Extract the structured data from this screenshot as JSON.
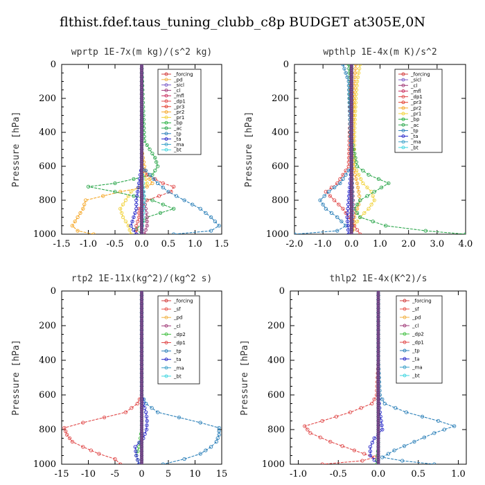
{
  "figure_title": "flthist.fdef.taus_tuning_clubb_c8p  BUDGET at305E,0N",
  "colors": {
    "_forcing": "#d23c3c",
    "_sf": "#e8534a",
    "_pd": "#f0b040",
    "_sicl": "#7b5cc8",
    "_cl": "#a03a78",
    "_mfl": "#c8285a",
    "_dp1": "#e04848",
    "_dp2": "#3fbf3f",
    "_pr3": "#e23a2a",
    "_pr2": "#f5a623",
    "_pr1": "#f1d23a",
    "_bp": "#1fae3a",
    "_ac": "#2aa64a",
    "_tp": "#2a7fb8",
    "_ta": "#2323c8",
    "_ma": "#3aa0c8",
    "_bt": "#3ed6e0"
  },
  "chart_data": [
    {
      "type": "line",
      "title": "wprtp  1E-7x(m kg)/(s^2 kg)",
      "ylabel": "Pressure [hPa]",
      "xlabel": "",
      "xlim": [
        -1.5,
        1.5
      ],
      "ylim": [
        1000,
        0
      ],
      "y_inverted": true,
      "xticks": [
        "-1.5",
        "-1.0",
        "-0.5",
        "0.0",
        "0.5",
        "1.0",
        "1.5"
      ],
      "yticks": [
        "0",
        "200",
        "400",
        "600",
        "800",
        "1000"
      ],
      "legend_position": "top-right",
      "legend": [
        "_forcing",
        "_pd",
        "_sicl",
        "_cl",
        "_mfl",
        "_dp1",
        "_pr3",
        "_pr2",
        "_pr1",
        "_bp",
        "_ac",
        "_tp",
        "_ta",
        "_ma",
        "_bt"
      ],
      "series": [
        {
          "name": "_forcing",
          "p": [
            0,
            200,
            400,
            600,
            800,
            1000
          ],
          "x": [
            0,
            0,
            0,
            0,
            0,
            0
          ]
        },
        {
          "name": "_pr2",
          "p": [
            0,
            500,
            600,
            650,
            700,
            720,
            750,
            800,
            850,
            900,
            950,
            980,
            1000
          ],
          "x": [
            0,
            0,
            0.05,
            0.1,
            0.2,
            0.1,
            -0.4,
            -1.05,
            -1.1,
            -1.2,
            -1.3,
            -1.2,
            -0.9
          ]
        },
        {
          "name": "_pr1",
          "p": [
            0,
            600,
            700,
            750,
            800,
            850,
            900,
            950,
            1000
          ],
          "x": [
            0,
            0,
            0.1,
            -0.2,
            -0.3,
            -0.4,
            -0.35,
            -0.25,
            -0.2
          ]
        },
        {
          "name": "_ac",
          "p": [
            0,
            450,
            500,
            550,
            600,
            650,
            700,
            720,
            750,
            800,
            850,
            900,
            940,
            970,
            1000
          ],
          "x": [
            0,
            0.05,
            0.15,
            0.25,
            0.3,
            0.2,
            -0.5,
            -1.0,
            -0.5,
            0.2,
            0.6,
            0.1,
            0.0,
            -0.1,
            0.0
          ]
        },
        {
          "name": "_dp1",
          "p": [
            0,
            600,
            650,
            700,
            720,
            750,
            800,
            850,
            900,
            950,
            1000
          ],
          "x": [
            0,
            0,
            0.1,
            0.4,
            0.6,
            0.55,
            0.1,
            -0.05,
            -0.05,
            -0.1,
            -0.1
          ]
        },
        {
          "name": "_tp",
          "p": [
            0,
            600,
            700,
            750,
            800,
            850,
            900,
            950,
            980,
            1000
          ],
          "x": [
            0,
            0,
            0.3,
            0.5,
            0.8,
            1.1,
            1.3,
            1.45,
            1.3,
            0.6
          ]
        },
        {
          "name": "_ta",
          "p": [
            0,
            600,
            700,
            800,
            850,
            900,
            950,
            1000
          ],
          "x": [
            0,
            0,
            -0.05,
            -0.1,
            -0.1,
            -0.15,
            -0.2,
            -0.1
          ]
        },
        {
          "name": "_cl",
          "p": [
            0,
            600,
            700,
            800,
            900,
            950,
            1000
          ],
          "x": [
            0,
            0,
            0,
            0.05,
            0.1,
            0.1,
            0.05
          ]
        },
        {
          "name": "_bt",
          "p": [
            0,
            600,
            800,
            1000
          ],
          "x": [
            0,
            0,
            0.05,
            0
          ]
        }
      ]
    },
    {
      "type": "line",
      "title": "wpthlp  1E-4x(m K)/s^2",
      "ylabel": "Pressure [hPa]",
      "xlabel": "",
      "xlim": [
        -2.0,
        4.0
      ],
      "ylim": [
        1000,
        0
      ],
      "y_inverted": true,
      "xticks": [
        "-2.0",
        "-1.0",
        "0.0",
        "1.0",
        "2.0",
        "3.0",
        "4.0"
      ],
      "yticks": [
        "0",
        "200",
        "400",
        "600",
        "800",
        "1000"
      ],
      "legend_position": "top-right",
      "legend": [
        "_forcing",
        "_sicl",
        "_cl",
        "_mfl",
        "_dp1",
        "_pr3",
        "_pr2",
        "_pr1",
        "_bp",
        "_ac",
        "_tp",
        "_ta",
        "_ma",
        "_bt"
      ],
      "series": [
        {
          "name": "_forcing",
          "p": [
            0,
            200,
            400,
            600,
            800,
            1000
          ],
          "x": [
            0,
            0,
            0,
            0,
            0,
            0
          ]
        },
        {
          "name": "_pr1",
          "p": [
            0,
            50,
            100,
            200,
            400,
            600,
            700,
            750,
            800,
            850,
            900,
            950,
            1000
          ],
          "x": [
            0.3,
            0.25,
            0.2,
            0.15,
            0.1,
            0.1,
            0.4,
            0.7,
            0.8,
            0.6,
            0.3,
            0.1,
            0.0
          ]
        },
        {
          "name": "_pr2",
          "p": [
            0,
            100,
            300,
            600,
            700,
            800,
            900,
            1000
          ],
          "x": [
            0.15,
            0.1,
            0.05,
            0.05,
            0.2,
            0.3,
            0.1,
            0
          ]
        },
        {
          "name": "_ac",
          "p": [
            0,
            100,
            400,
            600,
            650,
            700,
            750,
            800,
            850,
            900,
            950,
            980,
            1000
          ],
          "x": [
            -0.1,
            -0.05,
            -0.05,
            0.2,
            0.6,
            1.3,
            0.8,
            0.3,
            0.1,
            0.3,
            1.2,
            2.6,
            4.0
          ]
        },
        {
          "name": "_dp1",
          "p": [
            0,
            600,
            700,
            750,
            800,
            850,
            900,
            950,
            1000
          ],
          "x": [
            0,
            -0.1,
            -0.5,
            -0.9,
            -0.6,
            -0.3,
            -0.1,
            0.1,
            0.3
          ]
        },
        {
          "name": "_tp",
          "p": [
            0,
            100,
            600,
            700,
            750,
            800,
            850,
            900,
            950,
            980,
            1000
          ],
          "x": [
            -0.3,
            -0.1,
            0,
            -0.4,
            -0.8,
            -1.1,
            -0.9,
            -0.5,
            -0.2,
            -0.5,
            -2.0
          ]
        },
        {
          "name": "_ta",
          "p": [
            0,
            600,
            800,
            900,
            1000
          ],
          "x": [
            0,
            0,
            -0.1,
            -0.15,
            -0.1
          ]
        },
        {
          "name": "_cl",
          "p": [
            0,
            600,
            800,
            900,
            1000
          ],
          "x": [
            0,
            0,
            0.05,
            0.05,
            0
          ]
        },
        {
          "name": "_bt",
          "p": [
            0,
            600,
            800,
            1000
          ],
          "x": [
            0,
            0,
            0.02,
            0
          ]
        }
      ]
    },
    {
      "type": "line",
      "title": "rtp2  1E-11x(kg^2)/(kg^2 s)",
      "ylabel": "Pressure [hPa]",
      "xlabel": "",
      "xlim": [
        -15,
        15
      ],
      "ylim": [
        1000,
        0
      ],
      "y_inverted": true,
      "xticks": [
        "-15",
        "-10",
        "-5",
        "0",
        "5",
        "10",
        "15"
      ],
      "yticks": [
        "0",
        "200",
        "400",
        "600",
        "800",
        "1000"
      ],
      "legend_position": "top-right",
      "legend": [
        "_forcing",
        "_sf",
        "_pd",
        "_cl",
        "_dp2",
        "_dp1",
        "_tp",
        "_ta",
        "_ma",
        "_bt"
      ],
      "series": [
        {
          "name": "_forcing",
          "p": [
            0,
            200,
            400,
            600,
            800,
            1000
          ],
          "x": [
            0,
            0,
            0,
            0,
            0,
            0
          ]
        },
        {
          "name": "_dp1",
          "p": [
            0,
            600,
            650,
            700,
            730,
            760,
            790,
            830,
            870,
            900,
            940,
            970,
            1000
          ],
          "x": [
            0,
            0,
            -0.8,
            -3,
            -7,
            -11,
            -14.5,
            -14,
            -13,
            -11,
            -8,
            -5,
            -4
          ]
        },
        {
          "name": "_dp2",
          "p": [
            0,
            800,
            900,
            950,
            1000
          ],
          "x": [
            0,
            0,
            -0.5,
            -1,
            -0.5
          ]
        },
        {
          "name": "_tp",
          "p": [
            0,
            600,
            650,
            700,
            730,
            760,
            790,
            830,
            870,
            900,
            940,
            970,
            1000
          ],
          "x": [
            0,
            0,
            0.8,
            3,
            7,
            11,
            14.5,
            14.5,
            14,
            13,
            11,
            8,
            4
          ]
        },
        {
          "name": "_ta",
          "p": [
            0,
            600,
            650,
            700,
            750,
            800,
            850,
            900,
            950,
            1000
          ],
          "x": [
            0,
            0,
            0.3,
            0.8,
            1.0,
            0.9,
            0.3,
            -1.2,
            -1.0,
            -0.5
          ]
        },
        {
          "name": "_bt",
          "p": [
            0,
            800,
            1000
          ],
          "x": [
            0,
            0,
            0
          ]
        }
      ]
    },
    {
      "type": "line",
      "title": "thlp2  1E-4x(K^2)/s",
      "ylabel": "Pressure [hPa]",
      "xlabel": "",
      "xlim": [
        -1.1,
        1.1
      ],
      "ylim": [
        1000,
        0
      ],
      "y_inverted": true,
      "xticks": [
        "-1.0",
        "-0.5",
        "0.0",
        "0.5",
        "1.0"
      ],
      "yticks": [
        "0",
        "200",
        "400",
        "600",
        "800",
        "1000"
      ],
      "legend_position": "top-right",
      "legend": [
        "_forcing",
        "_sf",
        "_pd",
        "_cl",
        "_dp2",
        "_dp1",
        "_tp",
        "_ta",
        "_ma",
        "_bt"
      ],
      "series": [
        {
          "name": "_forcing",
          "p": [
            0,
            200,
            400,
            600,
            800,
            1000
          ],
          "x": [
            0,
            0,
            0,
            0,
            0,
            0
          ]
        },
        {
          "name": "_dp1",
          "p": [
            0,
            400,
            600,
            650,
            700,
            750,
            780,
            820,
            870,
            920,
            960,
            980,
            1000
          ],
          "x": [
            0,
            0,
            -0.02,
            -0.08,
            -0.35,
            -0.7,
            -0.92,
            -0.85,
            -0.6,
            -0.3,
            -0.05,
            -0.2,
            -0.7
          ]
        },
        {
          "name": "_tp",
          "p": [
            0,
            400,
            600,
            650,
            700,
            750,
            780,
            820,
            870,
            920,
            960,
            980,
            1000
          ],
          "x": [
            0,
            0,
            0.02,
            0.08,
            0.35,
            0.75,
            0.95,
            0.7,
            0.45,
            0.2,
            0.05,
            0.3,
            0.7
          ]
        },
        {
          "name": "_ta",
          "p": [
            0,
            600,
            700,
            800,
            850,
            900,
            950,
            1000
          ],
          "x": [
            0,
            0,
            0.02,
            0.05,
            -0.05,
            -0.1,
            -0.1,
            0
          ]
        },
        {
          "name": "_dp2",
          "p": [
            0,
            900,
            1000
          ],
          "x": [
            0,
            0,
            -0.02
          ]
        },
        {
          "name": "_bt",
          "p": [
            0,
            800,
            1000
          ],
          "x": [
            0,
            0,
            0
          ]
        }
      ]
    }
  ]
}
